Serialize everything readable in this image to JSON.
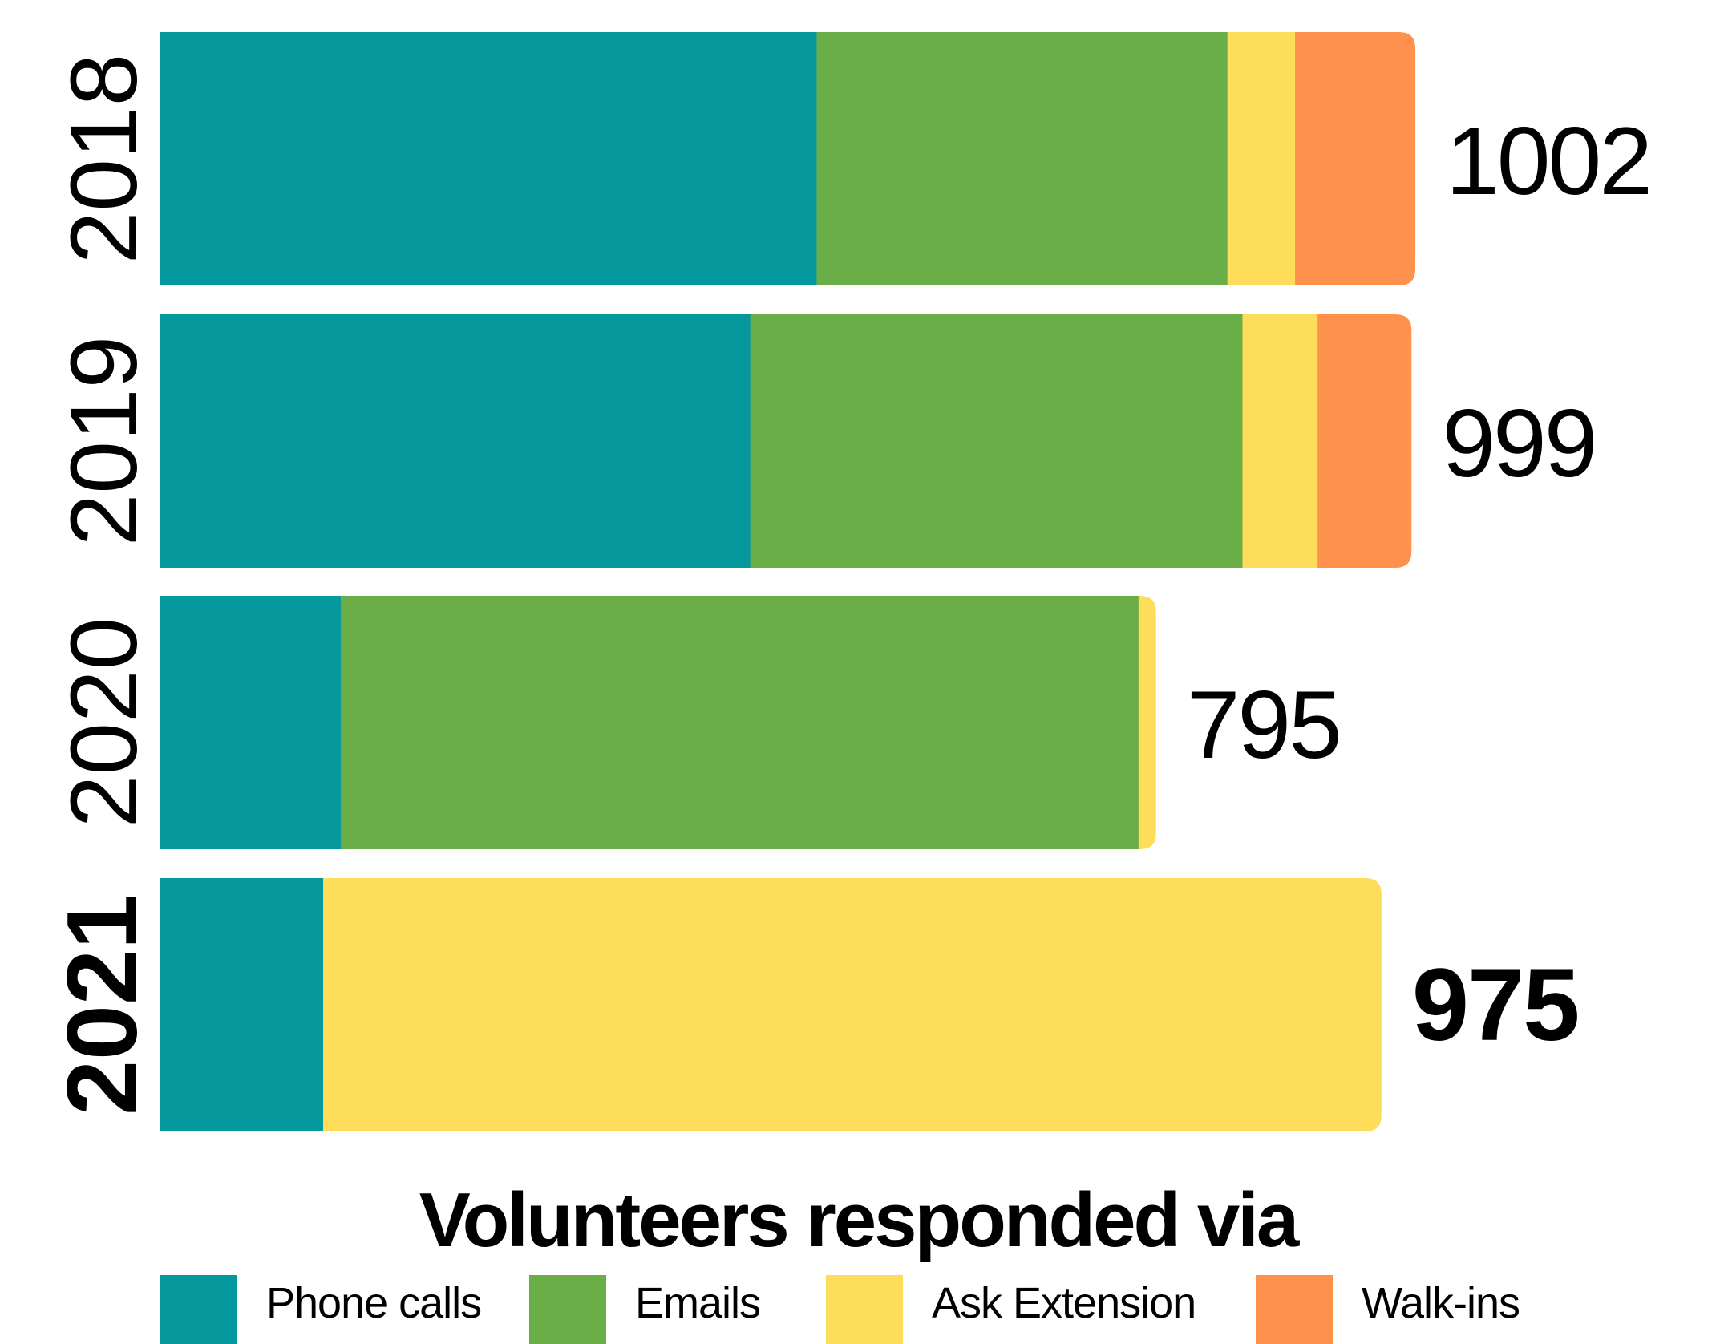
{
  "chart_data": {
    "type": "bar",
    "orientation": "horizontal",
    "stacked": true,
    "categories": [
      "2018",
      "2019",
      "2020",
      "2021"
    ],
    "highlighted_category": "2021",
    "totals": [
      1002,
      999,
      795,
      975
    ],
    "total_labels": [
      "1002",
      "999",
      "795",
      "975"
    ],
    "series": [
      {
        "name": "Phone calls",
        "color": "#05989C",
        "values": [
          524,
          471,
          144,
          130
        ]
      },
      {
        "name": "Emails",
        "color": "#69AE47",
        "values": [
          328,
          393,
          637,
          0
        ]
      },
      {
        "name": "Ask Extension",
        "color": "#FEDD5A",
        "values": [
          54,
          60,
          14,
          845
        ]
      },
      {
        "name": "Walk-ins",
        "color": "#FE914C",
        "values": [
          96,
          75,
          0,
          0
        ]
      }
    ],
    "legend_title": "Volunteers responded via",
    "legend_position": "bottom",
    "grid": false,
    "xlim": [
      0,
      1002
    ]
  }
}
